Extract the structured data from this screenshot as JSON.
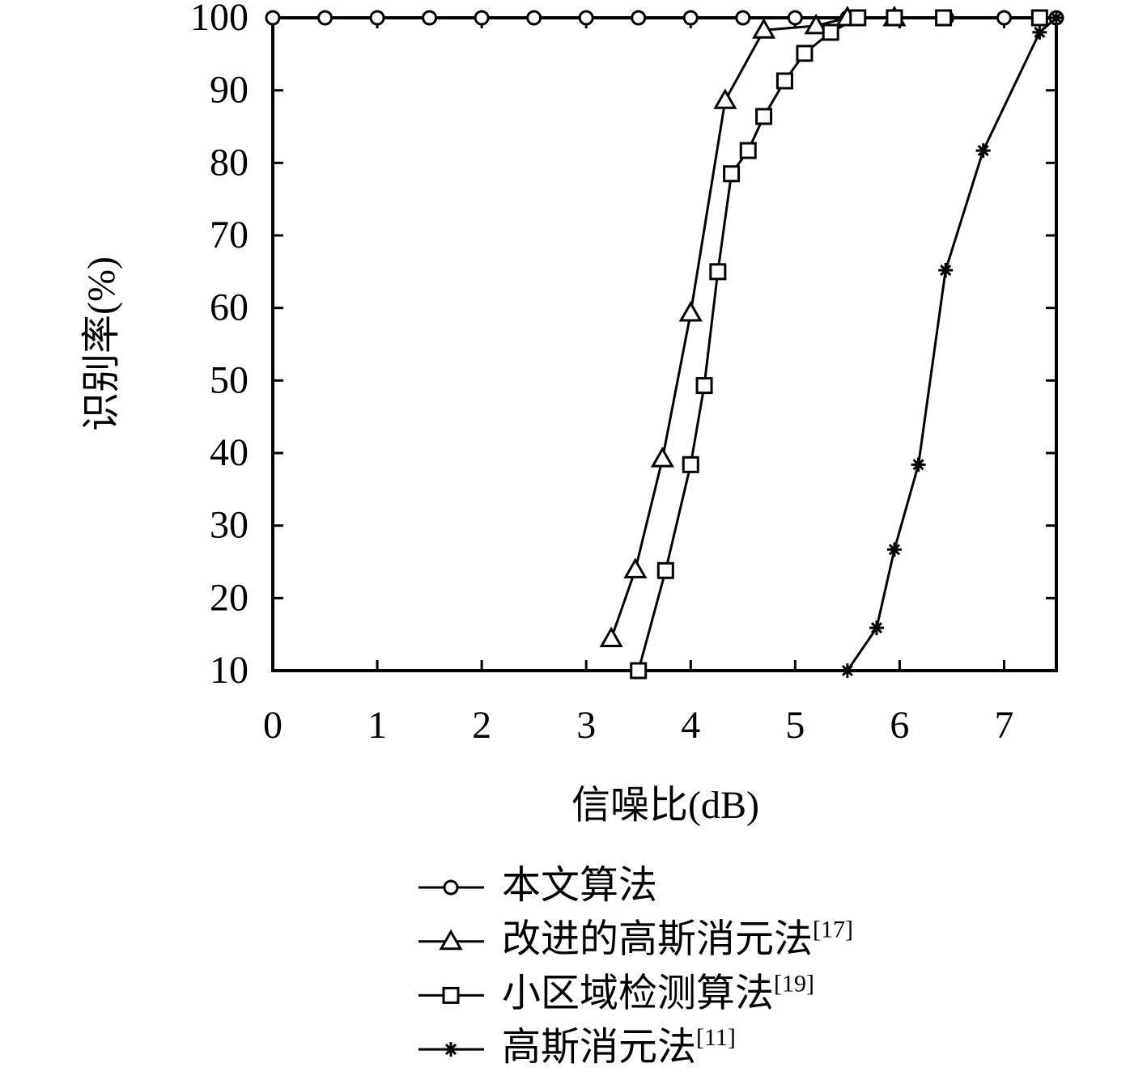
{
  "chart_data": {
    "type": "line",
    "x_label": "信噪比(dB)",
    "y_label": "识别率(%)",
    "xlim": [
      0,
      7.5
    ],
    "xticks": [
      0,
      1,
      2,
      3,
      4,
      5,
      6,
      7
    ],
    "ylim": [
      10,
      100
    ],
    "yticks": [
      10,
      20,
      30,
      40,
      50,
      60,
      70,
      80,
      90,
      100
    ],
    "legend": "bottom",
    "series": [
      {
        "name": "本文算法",
        "color": "#000000",
        "marker": "circle",
        "x": [
          0,
          0.5,
          1,
          1.5,
          2,
          2.5,
          3,
          3.5,
          4,
          4.5,
          5,
          5.5,
          5.95,
          6.45,
          7,
          7.5
        ],
        "values": [
          100,
          100,
          100,
          100,
          100,
          100,
          100,
          100,
          100,
          100,
          100,
          100,
          100,
          100,
          100,
          100
        ]
      },
      {
        "name": "改进的高斯消元法[17]",
        "color": "#000000",
        "marker": "triangle",
        "x": [
          3.24,
          3.47,
          3.73,
          4.0,
          4.33,
          4.7,
          5.2,
          5.5,
          5.95
        ],
        "values": [
          14.4,
          23.9,
          39.2,
          59.3,
          88.6,
          98.3,
          98.9,
          100,
          100
        ]
      },
      {
        "name": "小区域检测算法[19]",
        "color": "#000000",
        "marker": "square",
        "x": [
          3.5,
          3.76,
          4.0,
          4.13,
          4.26,
          4.39,
          4.55,
          4.7,
          4.9,
          5.09,
          5.34,
          5.6,
          5.95,
          6.42,
          7.34
        ],
        "values": [
          10,
          23.8,
          38.4,
          49.3,
          65.0,
          78.5,
          81.7,
          86.4,
          91.3,
          95.1,
          98.0,
          100,
          100,
          100,
          100
        ]
      },
      {
        "name": "高斯消元法[11]",
        "color": "#000000",
        "marker": "star",
        "x": [
          5.5,
          5.78,
          5.95,
          6.18,
          6.44,
          6.8,
          7.34,
          7.5
        ],
        "values": [
          10,
          15.9,
          26.7,
          38.4,
          65.2,
          81.7,
          98.0,
          100
        ]
      }
    ]
  }
}
